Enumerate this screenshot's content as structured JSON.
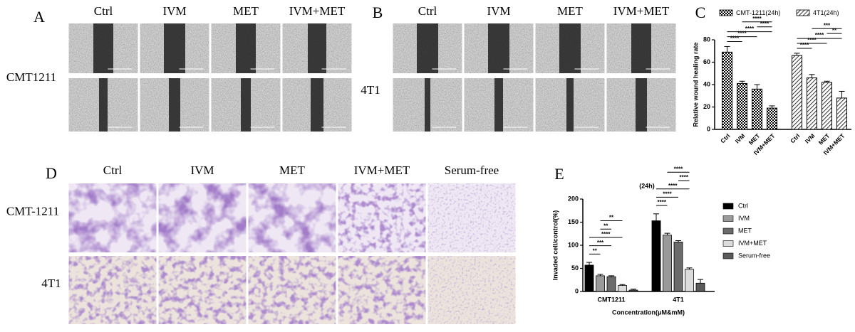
{
  "panel_a": {
    "label": "A",
    "columns": [
      "Ctrl",
      "IVM",
      "MET",
      "IVM+MET"
    ],
    "row_label": "CMT1211"
  },
  "panel_b": {
    "label": "B",
    "columns": [
      "Ctrl",
      "IVM",
      "MET",
      "IVM+MET"
    ],
    "row_label": "4T1"
  },
  "panel_d": {
    "label": "D",
    "columns": [
      "Ctrl",
      "IVM",
      "MET",
      "IVM+MET",
      "Serum-free"
    ],
    "row_labels": [
      "CMT-1211",
      "4T1"
    ]
  },
  "chart_data": [
    {
      "type": "bar",
      "panel_label": "C",
      "y_label": "Relative wound healing rate",
      "categories": [
        "Ctrl",
        "IVM",
        "MET",
        "IVM+MET"
      ],
      "series": [
        {
          "name": "CMT-1211(24h)",
          "color": "#000000",
          "pattern": "checker",
          "values": [
            69,
            41,
            36,
            19
          ],
          "errors": [
            5,
            2,
            4,
            2
          ],
          "significance": [
            {
              "pair": [
                0,
                1
              ],
              "label": "****"
            },
            {
              "pair": [
                0,
                2
              ],
              "label": "****"
            },
            {
              "pair": [
                0,
                3
              ],
              "label": "****"
            },
            {
              "pair": [
                2,
                3
              ],
              "label": "****"
            },
            {
              "pair": [
                1,
                3
              ],
              "label": "****"
            }
          ]
        },
        {
          "name": "4T1(24h)",
          "color": "#000000",
          "pattern": "hatch",
          "values": [
            66,
            46,
            42,
            28
          ],
          "errors": [
            2,
            3,
            1,
            6
          ],
          "significance": [
            {
              "pair": [
                0,
                1
              ],
              "label": "****"
            },
            {
              "pair": [
                0,
                2
              ],
              "label": "****"
            },
            {
              "pair": [
                0,
                3
              ],
              "label": "****"
            },
            {
              "pair": [
                2,
                3
              ],
              "label": "**"
            },
            {
              "pair": [
                1,
                3
              ],
              "label": "***"
            }
          ]
        }
      ],
      "ylim": [
        0,
        80
      ],
      "yticks": [
        0,
        20,
        40,
        60,
        80
      ],
      "legend": "top"
    },
    {
      "type": "bar",
      "panel_label": "E",
      "title": "(24h)",
      "y_label": "Invaded cell/control(%)",
      "x_label": "Concentration(μM&mM)",
      "categories": [
        "CMT1211",
        "4T1"
      ],
      "series": [
        {
          "name": "Ctrl",
          "color": "#000000",
          "values": [
            57,
            153
          ],
          "errors": [
            6,
            15
          ]
        },
        {
          "name": "IVM",
          "color": "#9a9a9a",
          "values": [
            34,
            122
          ],
          "errors": [
            3,
            4
          ]
        },
        {
          "name": "MET",
          "color": "#6b6b6b",
          "values": [
            32,
            107
          ],
          "errors": [
            2,
            3
          ]
        },
        {
          "name": "IVM+MET",
          "color": "#dcdcdc",
          "values": [
            13,
            48
          ],
          "errors": [
            2,
            3
          ]
        },
        {
          "name": "Serum-free",
          "color": "#5a5a5a",
          "values": [
            3,
            18
          ],
          "errors": [
            2,
            8
          ]
        }
      ],
      "significance": [
        [
          {
            "pair": [
              0,
              1
            ],
            "label": "**"
          },
          {
            "pair": [
              0,
              2
            ],
            "label": "***"
          },
          {
            "pair": [
              0,
              3
            ],
            "label": "****"
          },
          {
            "pair": [
              1,
              2
            ],
            "label": "**"
          },
          {
            "pair": [
              1,
              3
            ],
            "label": "**"
          }
        ],
        [
          {
            "pair": [
              0,
              1
            ],
            "label": "****"
          },
          {
            "pair": [
              0,
              2
            ],
            "label": "****"
          },
          {
            "pair": [
              0,
              3
            ],
            "label": "****"
          },
          {
            "pair": [
              2,
              3
            ],
            "label": "****"
          },
          {
            "pair": [
              1,
              3
            ],
            "label": "****"
          }
        ]
      ],
      "ylim": [
        0,
        200
      ],
      "yticks": [
        0,
        50,
        100,
        150,
        200
      ],
      "legend": "right"
    }
  ]
}
